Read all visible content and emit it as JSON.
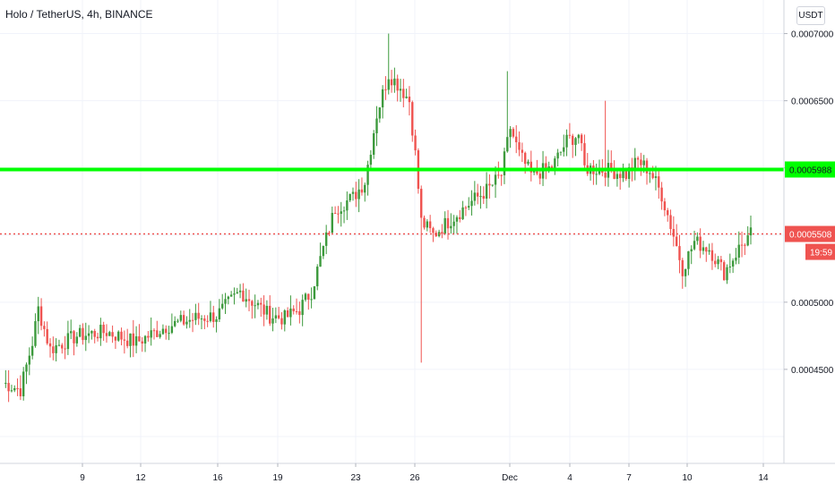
{
  "header": {
    "title": "Holo / TetherUS, 4h, BINANCE"
  },
  "currency_button": {
    "label": "USDT"
  },
  "colors": {
    "up": "#26a69a",
    "up_body": "#3d9a3d",
    "down": "#ef5350",
    "line": "#00ff00",
    "current": "#ef5350",
    "grid": "#f0f3fa"
  },
  "chart_data": {
    "type": "candlestick",
    "title": "Holo / TetherUS, 4h, BINANCE",
    "ylim": [
      0.00038,
      0.000725
    ],
    "y_ticks": [
      "0.0007000",
      "0.0006500",
      "0.0006000",
      "0.0005000",
      "0.0004500"
    ],
    "x_ticks": [
      "9",
      "12",
      "16",
      "19",
      "23",
      "26",
      "Dec",
      "4",
      "7",
      "10",
      "14"
    ],
    "horizontal_line": {
      "value": 0.0005988,
      "label": "0.0005988"
    },
    "current_price": {
      "value": 0.0005508,
      "label": "0.0005508",
      "countdown": "19:59"
    },
    "grid": true,
    "candles_summary": {
      "start_price": 0.00044,
      "anchors": [
        [
          0,
          0.00044
        ],
        [
          6,
          0.000435
        ],
        [
          10,
          0.00047
        ],
        [
          12,
          0.000495
        ],
        [
          16,
          0.000465
        ],
        [
          25,
          0.000475
        ],
        [
          35,
          0.000478
        ],
        [
          45,
          0.00047
        ],
        [
          55,
          0.000482
        ],
        [
          65,
          0.000488
        ],
        [
          72,
          0.00049
        ],
        [
          80,
          0.000508
        ],
        [
          90,
          0.00049
        ],
        [
          95,
          0.000488
        ],
        [
          100,
          0.000495
        ],
        [
          104,
          0.000508
        ],
        [
          108,
          0.00054
        ],
        [
          112,
          0.00057
        ],
        [
          118,
          0.000578
        ],
        [
          122,
          0.00059
        ],
        [
          126,
          0.00064
        ],
        [
          130,
          0.00067
        ],
        [
          134,
          0.00066
        ],
        [
          137,
          0.00065
        ],
        [
          139,
          0.00061
        ],
        [
          141,
          0.00056
        ],
        [
          145,
          0.00055
        ],
        [
          150,
          0.00056
        ],
        [
          158,
          0.000575
        ],
        [
          164,
          0.000585
        ],
        [
          168,
          0.000595
        ],
        [
          171,
          0.00063
        ],
        [
          174,
          0.00061
        ],
        [
          178,
          0.000595
        ],
        [
          185,
          0.0006
        ],
        [
          190,
          0.00062
        ],
        [
          194,
          0.000625
        ],
        [
          196,
          0.0006
        ],
        [
          205,
          0.000598
        ],
        [
          210,
          0.000595
        ],
        [
          214,
          0.000605
        ],
        [
          218,
          0.000598
        ],
        [
          222,
          0.00058
        ],
        [
          226,
          0.00055
        ],
        [
          229,
          0.000525
        ],
        [
          233,
          0.000545
        ],
        [
          238,
          0.00054
        ],
        [
          243,
          0.000522
        ],
        [
          248,
          0.00054
        ],
        [
          252,
          0.000551
        ]
      ]
    }
  }
}
